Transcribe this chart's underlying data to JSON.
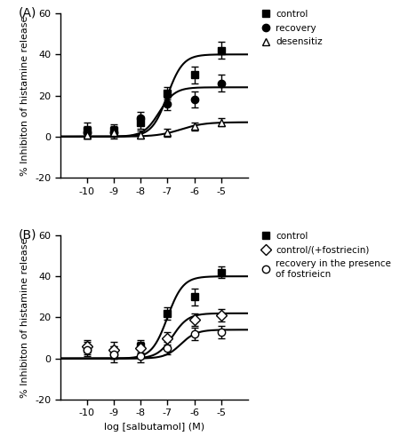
{
  "panel_A": {
    "label": "(A)",
    "series": [
      {
        "name": "control",
        "marker": "s",
        "marker_fill": "black",
        "marker_edge": "black",
        "x": [
          -10,
          -9,
          -8,
          -7,
          -6,
          -5
        ],
        "y": [
          3,
          3,
          7,
          21,
          30,
          42
        ],
        "yerr": [
          4,
          3,
          3,
          3,
          4,
          4
        ],
        "curve_Emax": 40,
        "curve_EC50": -7.0,
        "curve_nH": 1.5
      },
      {
        "name": "recovery",
        "marker": "o",
        "marker_fill": "black",
        "marker_edge": "black",
        "x": [
          -10,
          -9,
          -8,
          -7,
          -6,
          -5
        ],
        "y": [
          2,
          2,
          9,
          16,
          18,
          26
        ],
        "yerr": [
          3,
          3,
          3,
          3,
          4,
          4
        ],
        "curve_Emax": 24,
        "curve_EC50": -7.3,
        "curve_nH": 1.5
      },
      {
        "name": "desensitiz",
        "marker": "^",
        "marker_fill": "white",
        "marker_edge": "black",
        "x": [
          -10,
          -9,
          -8,
          -7,
          -6,
          -5
        ],
        "y": [
          1,
          2,
          1,
          2,
          5,
          7
        ],
        "yerr": [
          2,
          2,
          2,
          2,
          2,
          2
        ],
        "curve_Emax": 7,
        "curve_EC50": -6.5,
        "curve_nH": 1.0
      }
    ],
    "ylabel": "% Inhibiton of histamine release",
    "ylim": [
      -20,
      60
    ],
    "yticks": [
      -20,
      0,
      20,
      40,
      60
    ],
    "xlim": [
      -11,
      -4
    ],
    "xticks": [
      -10,
      -9,
      -8,
      -7,
      -6,
      -5
    ],
    "xticklabels": [
      "-10",
      "-9",
      "-8",
      "-7",
      "-6",
      "-5"
    ]
  },
  "panel_B": {
    "label": "(B)",
    "series": [
      {
        "name": "control",
        "marker": "s",
        "marker_fill": "black",
        "marker_edge": "black",
        "x": [
          -10,
          -9,
          -8,
          -7,
          -6,
          -5
        ],
        "y": [
          5,
          3,
          6,
          22,
          30,
          42
        ],
        "yerr": [
          3,
          3,
          3,
          3,
          4,
          3
        ],
        "curve_Emax": 40,
        "curve_EC50": -7.0,
        "curve_nH": 1.5
      },
      {
        "name": "control/(+fostriecin)",
        "marker": "D",
        "marker_fill": "white",
        "marker_edge": "black",
        "x": [
          -10,
          -9,
          -8,
          -7,
          -6,
          -5
        ],
        "y": [
          6,
          4,
          5,
          10,
          19,
          21
        ],
        "yerr": [
          3,
          4,
          3,
          3,
          3,
          3
        ],
        "curve_Emax": 22,
        "curve_EC50": -6.8,
        "curve_nH": 1.5
      },
      {
        "name": "recovery in the presence\nof fostrieicn",
        "marker": "o",
        "marker_fill": "white",
        "marker_edge": "black",
        "x": [
          -10,
          -9,
          -8,
          -7,
          -6,
          -5
        ],
        "y": [
          4,
          2,
          1,
          5,
          12,
          13
        ],
        "yerr": [
          3,
          4,
          3,
          3,
          3,
          3
        ],
        "curve_Emax": 14,
        "curve_EC50": -6.5,
        "curve_nH": 1.5
      }
    ],
    "ylabel": "% Inhibiton of histamine release",
    "xlabel": "log [salbutamol] (M)",
    "ylim": [
      -20,
      60
    ],
    "yticks": [
      -20,
      0,
      20,
      40,
      60
    ],
    "xlim": [
      -11,
      -4
    ],
    "xticks": [
      -10,
      -9,
      -8,
      -7,
      -6,
      -5
    ],
    "xticklabels": [
      "-10",
      "-9",
      "-8",
      "-7",
      "-6",
      "-5"
    ]
  },
  "line_color": "black",
  "line_width": 1.5,
  "marker_size": 6,
  "capsize": 3,
  "elinewidth": 1.0,
  "background_color": "white",
  "font_size": 8,
  "label_font_size": 8,
  "legend_font_size": 7.5
}
